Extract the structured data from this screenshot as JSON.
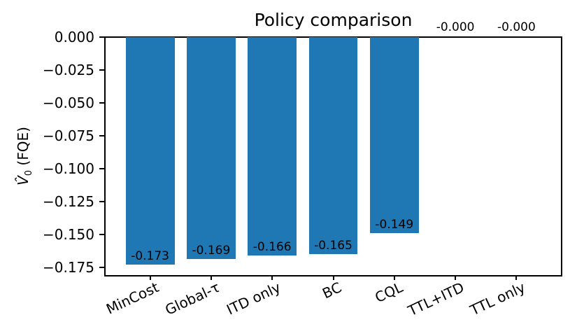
{
  "figure": {
    "title": "Policy comparison",
    "ylabel_var": "V̂",
    "ylabel_sub": "0",
    "ylabel_rest": " (FQE)",
    "background": "#ffffff"
  },
  "chart_data": {
    "type": "bar",
    "title": "Policy comparison",
    "ylabel": "V̂_0 (FQE)",
    "xlabel": "",
    "categories": [
      "MinCost",
      "Global-τ",
      "ITD only",
      "BC",
      "CQL",
      "TTL+ITD",
      "TTL only"
    ],
    "values": [
      -0.173,
      -0.169,
      -0.166,
      -0.165,
      -0.149,
      -0.0,
      -0.0
    ],
    "value_labels": [
      "-0.173",
      "-0.169",
      "-0.166",
      "-0.165",
      "-0.149",
      "-0.000",
      "-0.000"
    ],
    "bar_color": "#1f77b4",
    "text_color": "#000000",
    "ylim": [
      -0.181,
      0
    ],
    "xlim": [
      -0.74,
      6.74
    ],
    "bar_width_units": 0.8,
    "yticks": [
      0,
      -0.025,
      -0.05,
      -0.075,
      -0.1,
      -0.125,
      -0.15,
      -0.175
    ],
    "ytick_labels": [
      "0.000",
      "−0.025",
      "−0.050",
      "−0.075",
      "−0.100",
      "−0.125",
      "−0.150",
      "−0.175"
    ],
    "xtick_rotation_deg": 25,
    "grid": false,
    "legend": null
  }
}
